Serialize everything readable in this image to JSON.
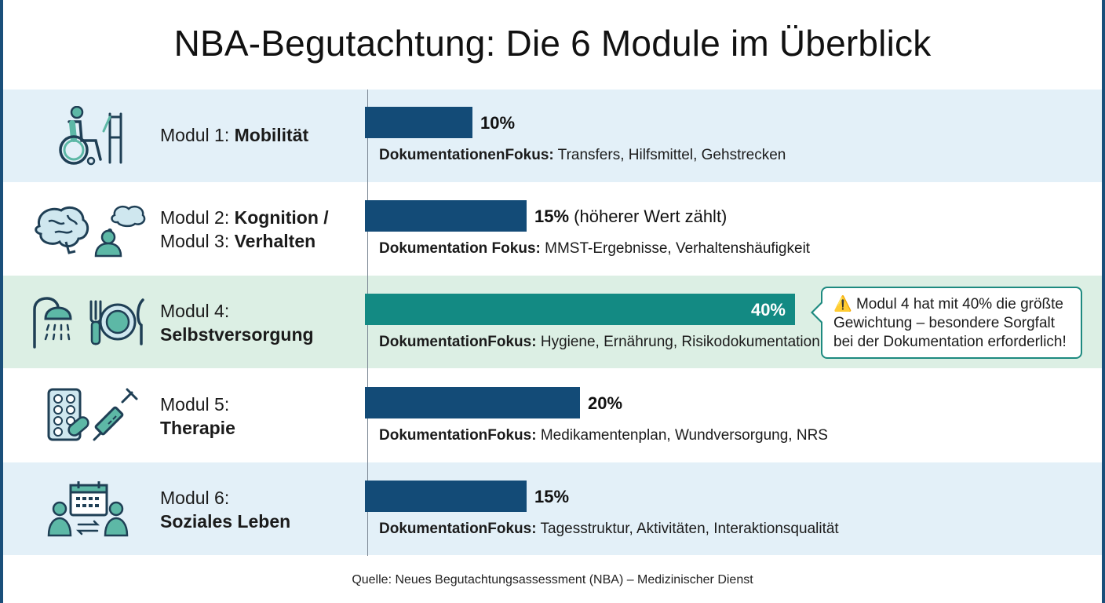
{
  "title": "NBA-Begutachtung: Die 6 Module im Überblick",
  "source": "Quelle: Neues Begutachtungsassessment (NBA) – Medizinischer Dienst",
  "callout": {
    "icon": "warning-icon",
    "text": "Modul 4 hat mit 40% die größte Gewichtung – besondere Sorgfalt bei der Dokumentation erforderlich!"
  },
  "modules": [
    {
      "prefix": "Modul 1: ",
      "name": "Mobilität",
      "pct_label": "10%",
      "pct_note": "",
      "focus_label": "DokumentationenFokus:",
      "focus_text": " Transfers, Hilfsmittel, Gehstrecken",
      "icons": [
        "wheelchair-icon",
        "walker-icon"
      ]
    },
    {
      "prefix": "Modul 2: ",
      "name": "Kognition /",
      "prefix2": "Modul 3: ",
      "name2": "Verhalten",
      "pct_label": "15%",
      "pct_note": " (höherer Wert zählt)",
      "focus_label": "Dokumentation Fokus:",
      "focus_text": " MMST-Ergebnisse, Verhaltenshäufigkeit",
      "icons": [
        "brain-icon",
        "person-thought-icon"
      ]
    },
    {
      "prefix": "Modul 4:",
      "name": "Selbstversorgung",
      "pct_label": "40%",
      "pct_note": "",
      "focus_label": "DokumentationFokus:",
      "focus_text": " Hygiene, Ernährung, Risikodokumentation",
      "icons": [
        "shower-icon",
        "plate-cutlery-icon"
      ]
    },
    {
      "prefix": "Modul 5:",
      "name": "Therapie",
      "pct_label": "20%",
      "pct_note": "",
      "focus_label": "DokumentationFokus:",
      "focus_text": " Medikamentenplan, Wundversorgung, NRS",
      "icons": [
        "pill-blister-icon",
        "syringe-icon"
      ]
    },
    {
      "prefix": "Modul 6:",
      "name": "Soziales Leben",
      "pct_label": "15%",
      "pct_note": "",
      "focus_label": "DokumentationFokus:",
      "focus_text": " Tagesstruktur, Aktivitäten, Interaktionsqualität",
      "icons": [
        "calendar-people-icon"
      ]
    }
  ],
  "chart_data": {
    "type": "bar",
    "orientation": "horizontal",
    "title": "NBA-Begutachtung: Die 6 Module im Überblick",
    "categories": [
      "Modul 1: Mobilität",
      "Modul 2: Kognition / Modul 3: Verhalten",
      "Modul 4: Selbstversorgung",
      "Modul 5: Therapie",
      "Modul 6: Soziales Leben"
    ],
    "values": [
      10,
      15,
      40,
      20,
      15
    ],
    "unit": "%",
    "xlim": [
      0,
      40
    ],
    "highlight_color": "#138a83",
    "bar_color": "#134b77",
    "grid": false,
    "legend": "none"
  }
}
